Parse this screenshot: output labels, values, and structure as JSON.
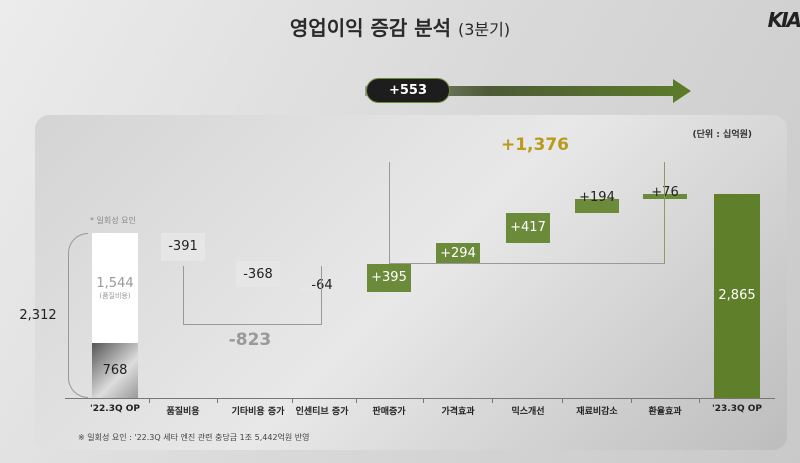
{
  "header": {
    "title": "영업이익 증감 분석",
    "title_suffix": "(3분기)",
    "logo": "KIA"
  },
  "arrow": {
    "label": "+553"
  },
  "unit": "(단위 : 십억원)",
  "chart_data": {
    "type": "waterfall",
    "categories": [
      "'22.3Q OP",
      "품질비용",
      "기타비용 증가",
      "인센티브 증가",
      "판매증가",
      "가격효과",
      "믹스개선",
      "재료비감소",
      "환율효과",
      "'23.3Q OP"
    ],
    "values": [
      2312,
      -391,
      -368,
      -64,
      395,
      294,
      417,
      194,
      76,
      2865
    ],
    "value_labels": [
      "2,312",
      "-391",
      "-368",
      "-64",
      "+395",
      "+294",
      "+417",
      "+194",
      "+76",
      "2,865"
    ],
    "start_breakdown": {
      "one_time": 1544,
      "one_time_label": "1,544",
      "one_time_note": "(품질비용)",
      "base": 768,
      "base_label": "768",
      "one_time_caption": "* 일회성 요인"
    },
    "group_totals": [
      {
        "label": "-823",
        "from": "품질비용",
        "to": "인센티브 증가"
      },
      {
        "label": "+1,376",
        "from": "판매증가",
        "to": "환율효과"
      }
    ],
    "colors": {
      "negative": "#e6e6e6",
      "positive": "#6b8a3a",
      "total": "#5f7f2a",
      "highlight": "#b89a1c"
    }
  },
  "footnote": "※ 일회성 요인 : '22.3Q 세타 엔진 관련 충당금 1조 5,442억원 반영"
}
